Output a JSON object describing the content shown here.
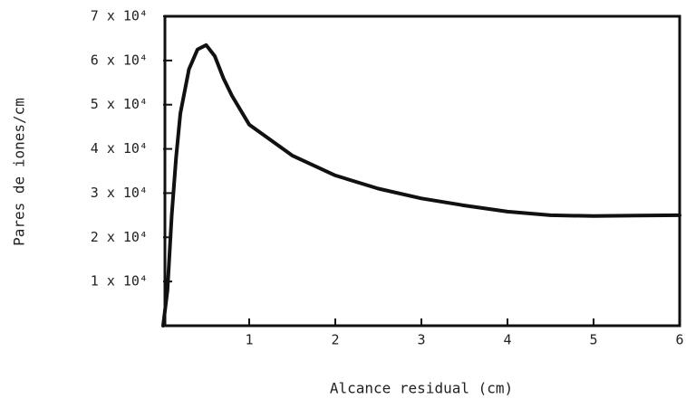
{
  "chart_data": {
    "type": "line",
    "xlabel": "Alcance residual (cm)",
    "ylabel": "Pares de iones/cm",
    "x": [
      0,
      0.05,
      0.1,
      0.15,
      0.2,
      0.3,
      0.4,
      0.5,
      0.6,
      0.7,
      0.8,
      1.0,
      1.5,
      2,
      2.5,
      3,
      3.5,
      4,
      4.5,
      5,
      5.5,
      6
    ],
    "values": [
      0,
      8000,
      25000,
      38000,
      48000,
      58000,
      62500,
      63500,
      61000,
      56000,
      52000,
      45500,
      38500,
      34000,
      31000,
      28800,
      27200,
      25800,
      25000,
      24800,
      24900,
      25000
    ],
    "color": "#111111",
    "xlim": [
      0,
      6
    ],
    "xticks": [
      1,
      2,
      3,
      4,
      5,
      6
    ],
    "ylim": [
      0,
      70000
    ],
    "yticks": [
      {
        "value": 10000,
        "label": "1 x 10⁴"
      },
      {
        "value": 20000,
        "label": "2 x 10⁴"
      },
      {
        "value": 30000,
        "label": "3 x 10⁴"
      },
      {
        "value": 40000,
        "label": "4 x 10⁴"
      },
      {
        "value": 50000,
        "label": "5 x 10⁴"
      },
      {
        "value": 60000,
        "label": "6 x 10⁴"
      },
      {
        "value": 70000,
        "label": "7 x 10⁴"
      }
    ]
  }
}
